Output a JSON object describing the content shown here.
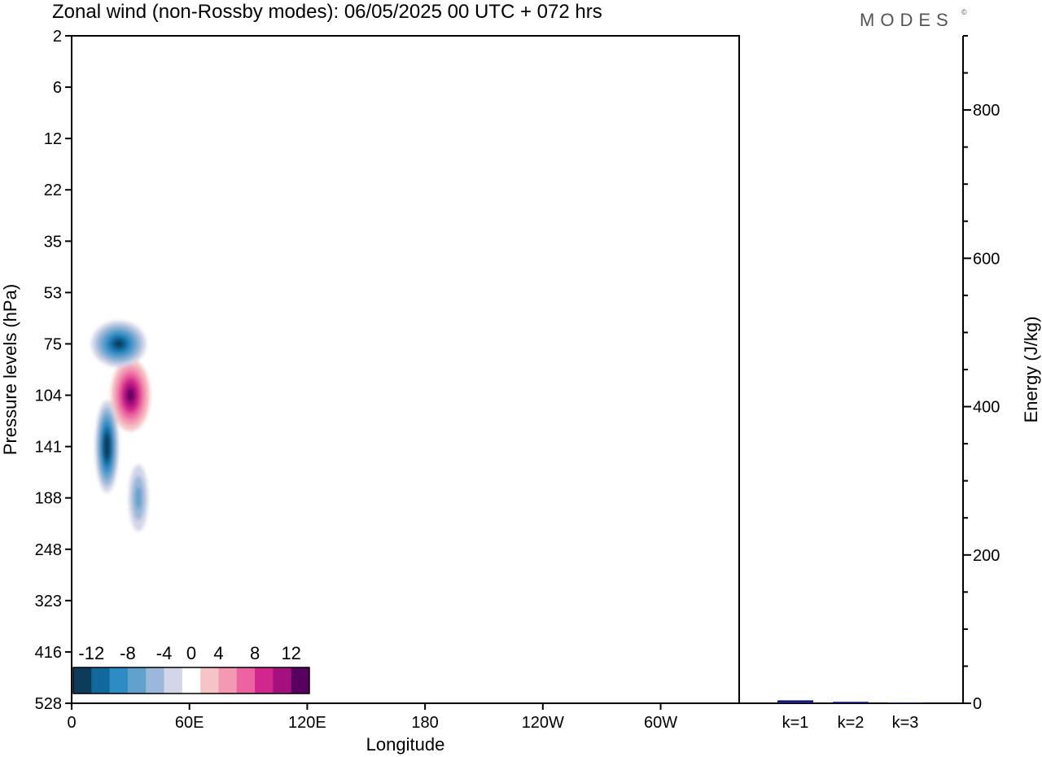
{
  "title": "Zonal wind (non-Rossby modes):  06/05/2025  00 UTC  + 072 hrs",
  "brand": "MODES",
  "brand_mark": "©",
  "colors": {
    "negative": [
      "#0d3b5a",
      "#11689c",
      "#2f8bc4",
      "#63a1cd",
      "#9ab8d9",
      "#d3d6e8"
    ],
    "neutral": "#ffffff",
    "positive": [
      "#f6c4c4",
      "#f399b4",
      "#ec63a0",
      "#d1268b",
      "#a4117e",
      "#57005f"
    ],
    "bar": "#1a1a6e"
  },
  "chart_data": [
    {
      "type": "heatmap",
      "title": "Zonal wind (non-Rossby modes):  06/05/2025  00 UTC  + 072 hrs",
      "xlabel": "Longitude",
      "ylabel": "Pressure levels (hPa)",
      "x_ticks": [
        "0",
        "60E",
        "120E",
        "180",
        "120W",
        "60W"
      ],
      "x_tick_values": [
        0,
        60,
        120,
        180,
        240,
        300
      ],
      "xlim": [
        0,
        340
      ],
      "y_ticks": [
        "2",
        "6",
        "12",
        "22",
        "35",
        "53",
        "75",
        "104",
        "141",
        "188",
        "248",
        "323",
        "416",
        "528"
      ],
      "colorbar_levels": [
        -14,
        -12,
        -10,
        -8,
        -6,
        -4,
        -2,
        2,
        4,
        6,
        8,
        10,
        12,
        14
      ],
      "colorbar_labels": [
        "-12",
        "-8",
        "-4",
        "0",
        "4",
        "8",
        "12"
      ],
      "features": [
        {
          "lon": 30,
          "level": 104,
          "lon_halfwidth": 10,
          "level_span": 1.4,
          "value": 12
        },
        {
          "lon": 18,
          "level": 141,
          "lon_halfwidth": 6,
          "level_span": 1.8,
          "value": -14
        },
        {
          "lon": 34,
          "level": 188,
          "lon_halfwidth": 5,
          "level_span": 1.3,
          "value": -6
        },
        {
          "lon": 24,
          "level": 75,
          "lon_halfwidth": 14,
          "level_span": 0.9,
          "value": -12
        }
      ]
    },
    {
      "type": "bar",
      "ylabel": "Energy (J/kg)",
      "categories": [
        "k=1",
        "k=2",
        "k=3"
      ],
      "values": [
        4,
        2,
        1
      ],
      "ylim": [
        0,
        900
      ],
      "y_ticks": [
        0,
        200,
        400,
        600,
        800
      ]
    }
  ]
}
